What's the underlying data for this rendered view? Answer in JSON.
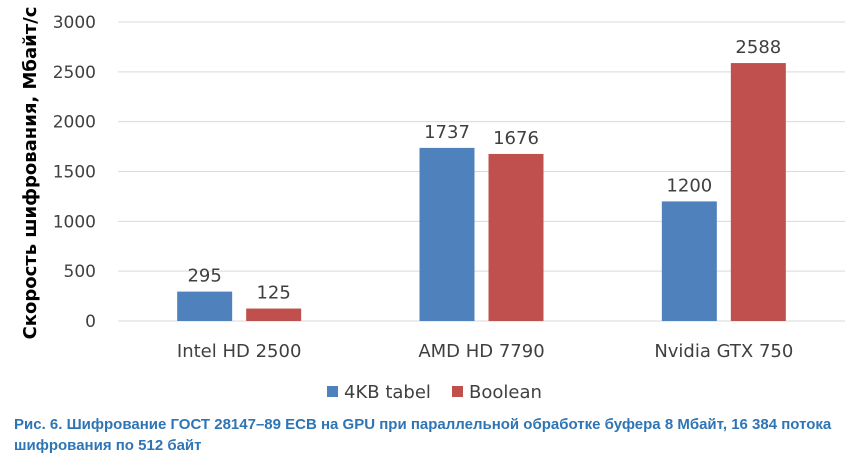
{
  "chart_data": {
    "type": "bar",
    "categories": [
      "Intel HD 2500",
      "AMD HD 7790",
      "Nvidia GTX 750"
    ],
    "series": [
      {
        "name": "4KB tabel",
        "values": [
          295,
          1737,
          1200
        ],
        "color": "#4f81bd"
      },
      {
        "name": "Boolean",
        "values": [
          125,
          1676,
          2588
        ],
        "color": "#c0504d"
      }
    ],
    "ylabel": "Скорость шифрования, Мбайт/с",
    "ylim": [
      0,
      3000
    ],
    "yticks": [
      0,
      500,
      1000,
      1500,
      2000,
      2500,
      3000
    ],
    "grid": true,
    "legend_position": "bottom",
    "data_labels": true
  },
  "caption": "Рис. 6. Шифрование ГОСТ 28147–89 ECB на GPU при параллельной обработке буфера 8 Мбайт, 16 384 потока шифрования по 512 байт"
}
